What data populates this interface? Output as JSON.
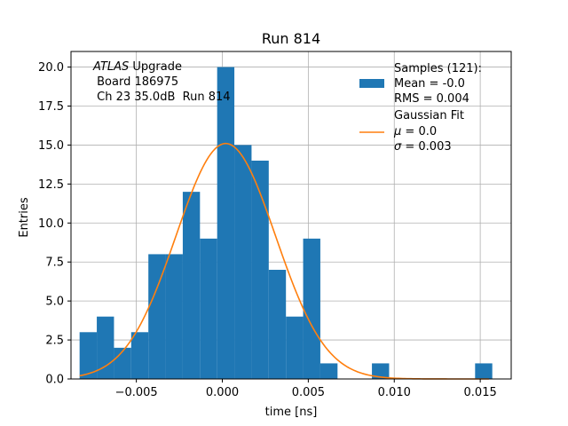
{
  "chart_data": {
    "type": "bar",
    "title": "Run 814",
    "xlabel": "time [ns]",
    "ylabel": "Entries",
    "xlim": [
      -0.0088,
      0.0168
    ],
    "ylim": [
      0,
      21
    ],
    "grid": true,
    "bin_width": 0.001,
    "bins": [
      {
        "start": -0.0083,
        "value": 3
      },
      {
        "start": -0.0073,
        "value": 4
      },
      {
        "start": -0.0063,
        "value": 2
      },
      {
        "start": -0.0053,
        "value": 3
      },
      {
        "start": -0.0043,
        "value": 8
      },
      {
        "start": -0.0033,
        "value": 8
      },
      {
        "start": -0.0023,
        "value": 12
      },
      {
        "start": -0.0013,
        "value": 9
      },
      {
        "start": -0.0003,
        "value": 20
      },
      {
        "start": 0.0007,
        "value": 15
      },
      {
        "start": 0.0017,
        "value": 14
      },
      {
        "start": 0.0027,
        "value": 7
      },
      {
        "start": 0.0037,
        "value": 4
      },
      {
        "start": 0.0047,
        "value": 9
      },
      {
        "start": 0.0057,
        "value": 1
      },
      {
        "start": 0.0087,
        "value": 1
      },
      {
        "start": 0.0147,
        "value": 1
      }
    ],
    "fit": {
      "mu": 0.0002,
      "sigma": 0.0029,
      "amplitude": 15.1,
      "x_range": [
        -0.0083,
        0.0155
      ]
    },
    "x_ticks": [
      "−0.005",
      "0.000",
      "0.005",
      "0.010",
      "0.015"
    ],
    "x_tick_values": [
      -0.005,
      0.0,
      0.005,
      0.01,
      0.015
    ],
    "y_ticks": [
      "0.0",
      "2.5",
      "5.0",
      "7.5",
      "10.0",
      "12.5",
      "15.0",
      "17.5",
      "20.0"
    ],
    "y_tick_values": [
      0,
      2.5,
      5,
      7.5,
      10,
      12.5,
      15,
      17.5,
      20
    ],
    "colors": {
      "bars": "#1f77b4",
      "fit": "#ff7f0e",
      "grid": "#b0b0b0"
    },
    "annotation": {
      "italic": "ATLAS",
      "line1_rest": " Upgrade",
      "line2": " Board 186975",
      "line3": " Ch 23 35.0dB  Run 814"
    },
    "legend": {
      "placement": "top-right",
      "samples": {
        "line1": "Samples (121):",
        "line2": "Mean = -0.0",
        "line3": "RMS = 0.004"
      },
      "fit": {
        "line1": "Gaussian Fit",
        "mu_symbol": "μ",
        "mu_rest": " = 0.0",
        "sigma_symbol": "σ",
        "sigma_rest": " = 0.003"
      }
    }
  }
}
